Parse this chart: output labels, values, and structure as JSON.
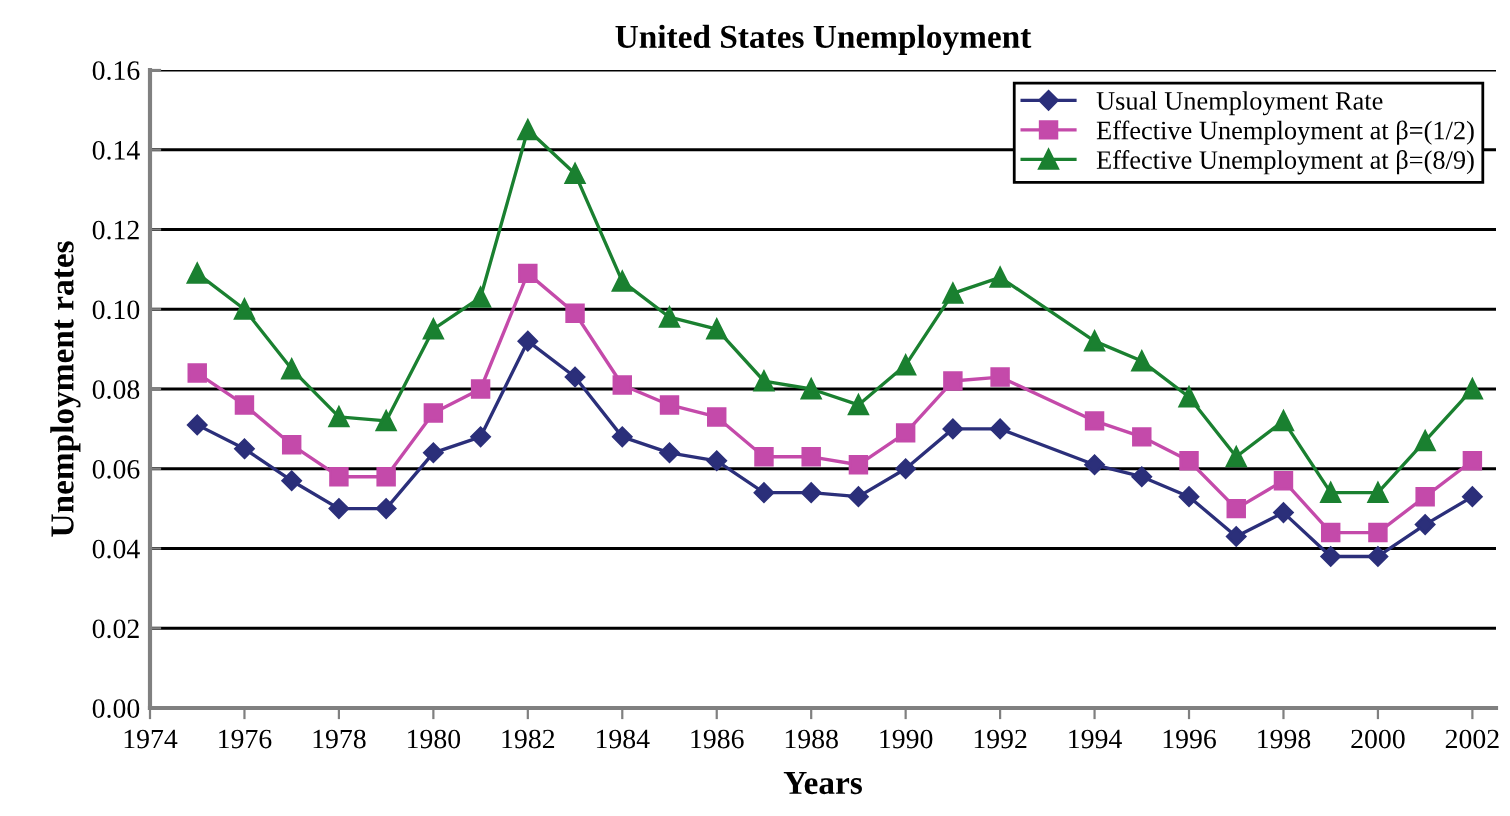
{
  "chart_data": {
    "type": "line",
    "title": "United States Unemployment",
    "xlabel": "Years",
    "ylabel": "Unemployment rates",
    "x": [
      1975,
      1976,
      1977,
      1978,
      1979,
      1980,
      1981,
      1982,
      1983,
      1984,
      1985,
      1986,
      1987,
      1988,
      1989,
      1990,
      1991,
      1992,
      1994,
      1995,
      1996,
      1997,
      1998,
      1999,
      2000,
      2001,
      2002
    ],
    "series": [
      {
        "name": "Usual Unemployment Rate",
        "color": "#2b2f7a",
        "marker": "diamond",
        "values": [
          0.071,
          0.065,
          0.057,
          0.05,
          0.05,
          0.064,
          0.068,
          0.092,
          0.083,
          0.068,
          0.064,
          0.062,
          0.054,
          0.054,
          0.053,
          0.06,
          0.07,
          0.07,
          0.061,
          0.058,
          0.053,
          0.043,
          0.049,
          0.038,
          0.038,
          0.046,
          0.053
        ]
      },
      {
        "name": "Effective Unemployment at β=(1/2)",
        "color": "#c44aaa",
        "marker": "square",
        "values": [
          0.084,
          0.076,
          0.066,
          0.058,
          0.058,
          0.074,
          0.08,
          0.109,
          0.099,
          0.081,
          0.076,
          0.073,
          0.063,
          0.063,
          0.061,
          0.069,
          0.082,
          0.083,
          0.072,
          0.068,
          0.062,
          0.05,
          0.057,
          0.044,
          0.044,
          0.053,
          0.062
        ]
      },
      {
        "name": "Effective Unemployment at β=(8/9)",
        "color": "#1a8030",
        "marker": "triangle",
        "values": [
          0.109,
          0.1,
          0.085,
          0.073,
          0.072,
          0.095,
          0.103,
          0.145,
          0.134,
          0.107,
          0.098,
          0.095,
          0.082,
          0.08,
          0.076,
          0.086,
          0.104,
          0.108,
          0.092,
          0.087,
          0.078,
          0.063,
          0.072,
          0.054,
          0.054,
          0.067,
          0.08
        ]
      }
    ],
    "xlim": [
      1974,
      2002.5
    ],
    "xticks": [
      1974,
      1976,
      1978,
      1980,
      1982,
      1984,
      1986,
      1988,
      1990,
      1992,
      1994,
      1996,
      1998,
      2000,
      2002
    ],
    "ylim": [
      0,
      0.16
    ],
    "yticks": [
      {
        "value": 0,
        "label": "0.00"
      },
      {
        "value": 0.02,
        "label": "0.02"
      },
      {
        "value": 0.04,
        "label": "0.04"
      },
      {
        "value": 0.06,
        "label": "0.06"
      },
      {
        "value": 0.08,
        "label": "0.08"
      },
      {
        "value": 0.1,
        "label": "0.10"
      },
      {
        "value": 0.12,
        "label": "0.12"
      },
      {
        "value": 0.14,
        "label": "0.14"
      },
      {
        "value": 0.16,
        "label": "0.16"
      }
    ],
    "grid": "y",
    "legend": "top right",
    "line_style": "solid"
  }
}
